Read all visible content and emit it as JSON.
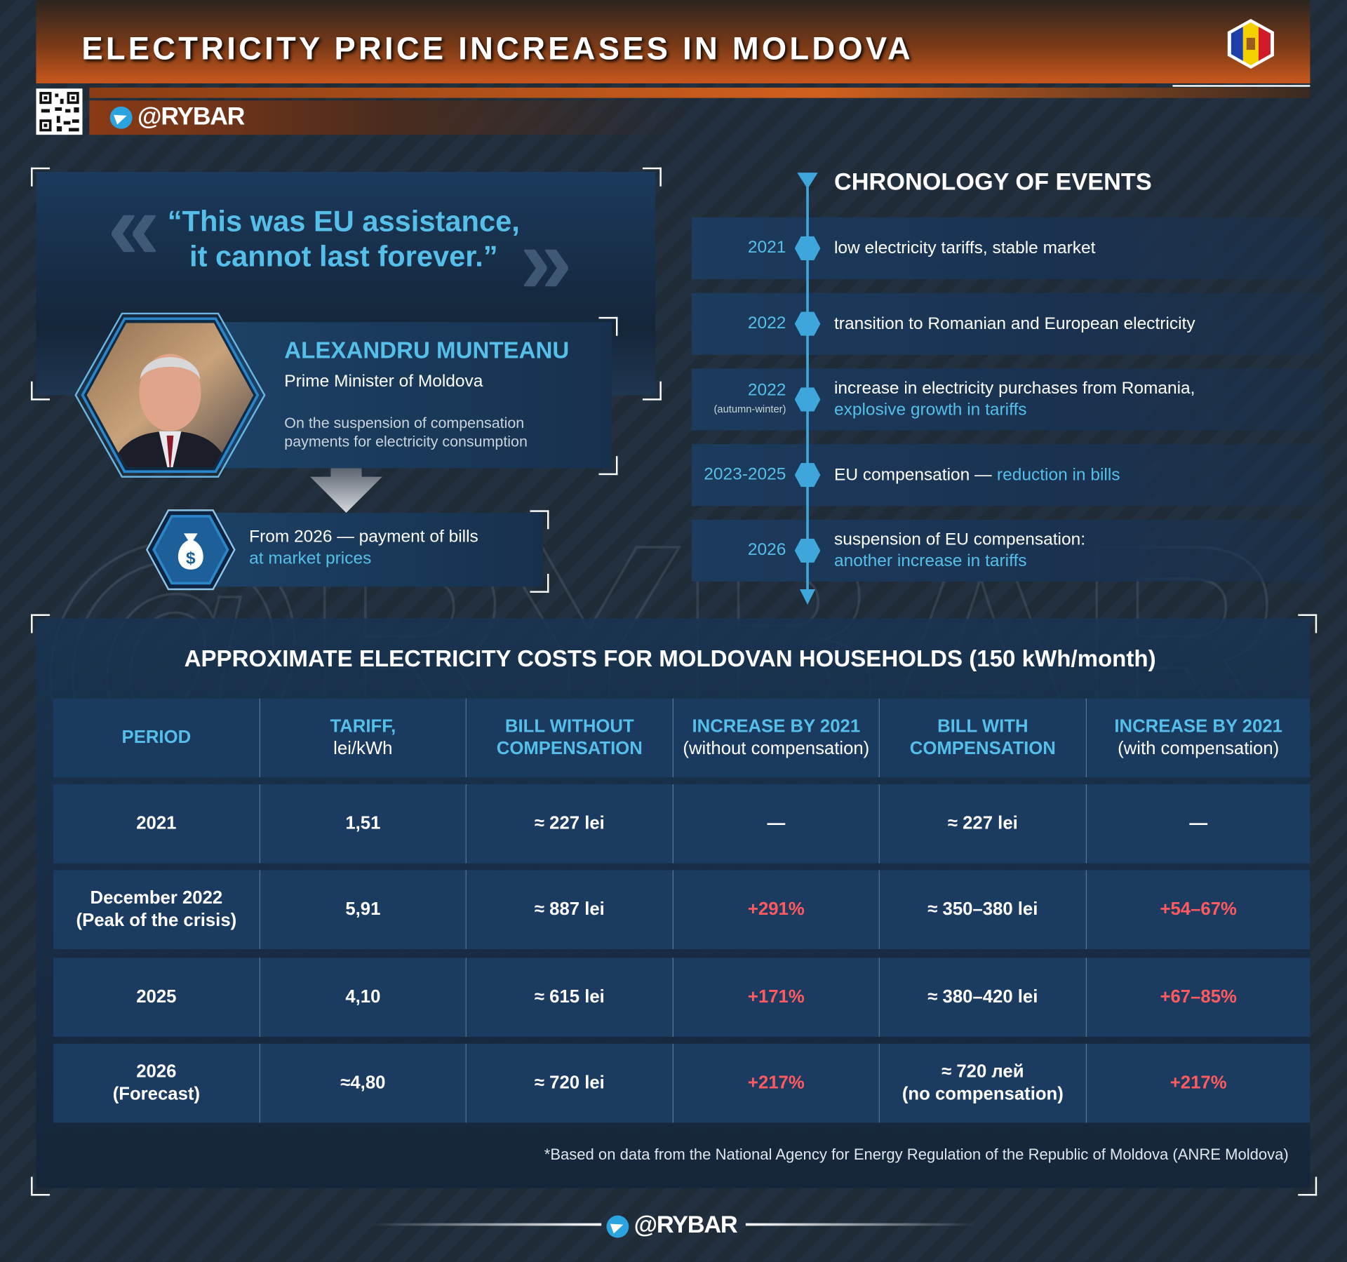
{
  "header": {
    "title": "ELECTRICITY PRICE INCREASES IN MOLDOVA"
  },
  "brand": "@RYBAR",
  "quote": {
    "text": "“This was EU assistance,\nit cannot last forever.”"
  },
  "person": {
    "name": "ALEXANDRU MUNTEANU",
    "role": "Prime Minister of Moldova",
    "description": "On the suspension of compensation payments for electricity consumption"
  },
  "outcome": {
    "text": "From 2026 — payment of bills",
    "highlight": "at market prices"
  },
  "chronology": {
    "title": "CHRONOLOGY OF EVENTS",
    "events": [
      {
        "year": "2021",
        "text": "low electricity tariffs, stable market"
      },
      {
        "year": "2022",
        "text": "transition to Romanian and European electricity"
      },
      {
        "year": "2022",
        "note": "(autumn-winter)",
        "text": "increase in electricity purchases from Romania,",
        "highlight": "explosive growth in tariffs"
      },
      {
        "year": "2023-2025",
        "text": "EU compensation —",
        "highlight": "reduction in bills"
      },
      {
        "year": "2026",
        "text": "suspension of EU compensation:",
        "highlight": "another increase in tariffs"
      }
    ]
  },
  "table": {
    "title": "APPROXIMATE ELECTRICITY COSTS FOR MOLDOVAN HOUSEHOLDS (150 kWh/month)",
    "columns": [
      {
        "title": "PERIOD"
      },
      {
        "title": "TARIFF,",
        "sub": "lei/kWh"
      },
      {
        "title": "BILL WITHOUT\nCOMPENSATION"
      },
      {
        "title": "INCREASE BY 2021",
        "sub": "(without compensation)"
      },
      {
        "title": "BILL WITH\nCOMPENSATION"
      },
      {
        "title": "INCREASE BY 2021",
        "sub": "(with compensation)"
      }
    ],
    "rows": [
      [
        "2021",
        "1,51",
        "≈ 227 lei",
        "—",
        "≈ 227 lei",
        "—"
      ],
      [
        "December 2022\n(Peak of the crisis)",
        "5,91",
        "≈ 887 lei",
        "+291%",
        "≈ 350–380 lei",
        "+54–67%"
      ],
      [
        "2025",
        "4,10",
        "≈ 615 lei",
        "+171%",
        "≈ 380–420 lei",
        "+67–85%"
      ],
      [
        "2026\n(Forecast)",
        "≈4,80",
        "≈ 720 lei",
        "+217%",
        "≈ 720 лей\n(no compensation)",
        "+217%"
      ]
    ],
    "footnote": "*Based on data from the National Agency for Energy Regulation of the Republic of Moldova (ANRE Moldova)"
  }
}
